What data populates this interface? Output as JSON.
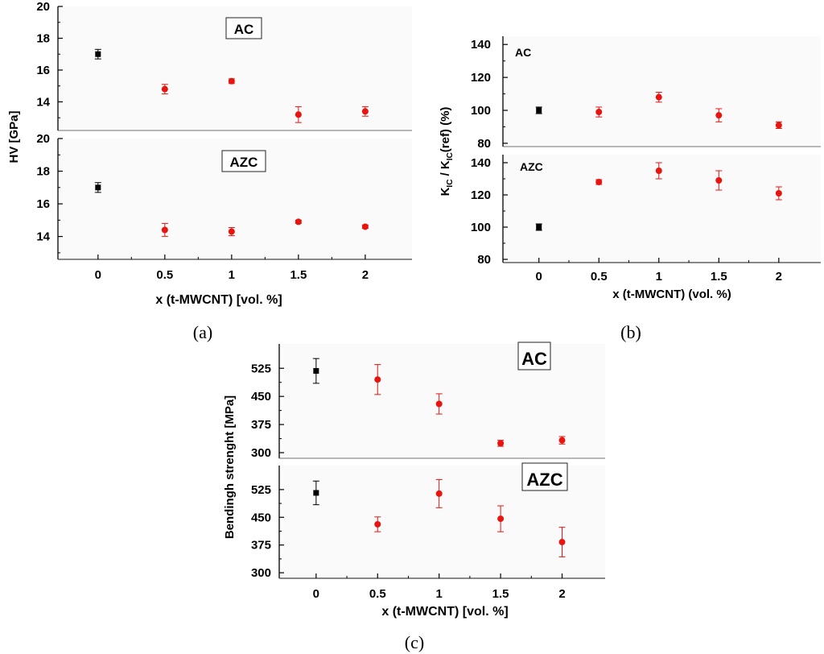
{
  "chart_data": [
    {
      "id": "a",
      "type": "scatter",
      "caption": "(a)",
      "xlabel": "x (t-MWCNT) [vol. %]",
      "ylabel": "HV [GPa]",
      "xticks": [
        "0",
        "0.5",
        "1",
        "1.5",
        "2"
      ],
      "xlim": [
        -0.3,
        2.35
      ],
      "panels": [
        {
          "label": "AC",
          "ylim": [
            12.2,
            20
          ],
          "yticks": [
            "14",
            "16",
            "18",
            "20"
          ],
          "points": [
            {
              "x": 0,
              "y": 17.0,
              "err": 0.3,
              "series": "ref"
            },
            {
              "x": 0.5,
              "y": 14.8,
              "err": 0.3,
              "series": "cnt"
            },
            {
              "x": 1,
              "y": 15.3,
              "err": 0.15,
              "series": "cnt"
            },
            {
              "x": 1.5,
              "y": 13.2,
              "err": 0.5,
              "series": "cnt"
            },
            {
              "x": 2,
              "y": 13.4,
              "err": 0.3,
              "series": "cnt"
            }
          ]
        },
        {
          "label": "AZC",
          "ylim": [
            12.6,
            20
          ],
          "yticks": [
            "14",
            "16",
            "18",
            "20"
          ],
          "points": [
            {
              "x": 0,
              "y": 17.0,
              "err": 0.3,
              "series": "ref"
            },
            {
              "x": 0.5,
              "y": 14.4,
              "err": 0.4,
              "series": "cnt"
            },
            {
              "x": 1,
              "y": 14.3,
              "err": 0.25,
              "series": "cnt"
            },
            {
              "x": 1.5,
              "y": 14.9,
              "err": 0.1,
              "series": "cnt"
            },
            {
              "x": 2,
              "y": 14.6,
              "err": 0.1,
              "series": "cnt"
            }
          ]
        }
      ]
    },
    {
      "id": "b",
      "type": "scatter",
      "caption": "(b)",
      "xlabel": "x (t-MWCNT) (vol. %)",
      "ylabel": "K",
      "ylabel_parts": [
        "K",
        "IC",
        " / K",
        "IC",
        "(ref) (%)"
      ],
      "xticks": [
        "0",
        "0.5",
        "1",
        "1.5",
        "2"
      ],
      "xlim": [
        -0.3,
        2.35
      ],
      "panels": [
        {
          "label": "AC",
          "ylim": [
            78,
            145
          ],
          "yticks": [
            "80",
            "100",
            "120",
            "140"
          ],
          "points": [
            {
              "x": 0,
              "y": 100,
              "err": 2,
              "series": "ref"
            },
            {
              "x": 0.5,
              "y": 99,
              "err": 3,
              "series": "cnt"
            },
            {
              "x": 1,
              "y": 108,
              "err": 3,
              "series": "cnt"
            },
            {
              "x": 1.5,
              "y": 97,
              "err": 4,
              "series": "cnt"
            },
            {
              "x": 2,
              "y": 91,
              "err": 2,
              "series": "cnt"
            }
          ]
        },
        {
          "label": "AZC",
          "ylim": [
            78,
            145
          ],
          "yticks": [
            "80",
            "100",
            "120",
            "140"
          ],
          "points": [
            {
              "x": 0,
              "y": 100,
              "err": 2,
              "series": "ref"
            },
            {
              "x": 0.5,
              "y": 128,
              "err": 1.5,
              "series": "cnt"
            },
            {
              "x": 1,
              "y": 135,
              "err": 5,
              "series": "cnt"
            },
            {
              "x": 1.5,
              "y": 129,
              "err": 6,
              "series": "cnt"
            },
            {
              "x": 2,
              "y": 121,
              "err": 4,
              "series": "cnt"
            }
          ]
        }
      ]
    },
    {
      "id": "c",
      "type": "scatter",
      "caption": "(c)",
      "xlabel": "x (t-MWCNT) [vol. %]",
      "ylabel": "Bendingh strenght [MPa]",
      "xticks": [
        "0",
        "0.5",
        "1",
        "1.5",
        "2"
      ],
      "xlim": [
        -0.3,
        2.35
      ],
      "panels": [
        {
          "label": "AC",
          "ylim": [
            285,
            590
          ],
          "yticks": [
            "300",
            "375",
            "450",
            "525"
          ],
          "points": [
            {
              "x": 0,
              "y": 518,
              "err": 33,
              "series": "ref"
            },
            {
              "x": 0.5,
              "y": 495,
              "err": 40,
              "series": "cnt"
            },
            {
              "x": 1,
              "y": 430,
              "err": 27,
              "series": "cnt"
            },
            {
              "x": 1.5,
              "y": 325,
              "err": 8,
              "series": "cnt"
            },
            {
              "x": 2,
              "y": 333,
              "err": 10,
              "series": "cnt"
            }
          ]
        },
        {
          "label": "AZC",
          "ylim": [
            285,
            590
          ],
          "yticks": [
            "300",
            "375",
            "450",
            "525"
          ],
          "points": [
            {
              "x": 0,
              "y": 516,
              "err": 32,
              "series": "ref"
            },
            {
              "x": 0.5,
              "y": 431,
              "err": 20,
              "series": "cnt"
            },
            {
              "x": 1,
              "y": 514,
              "err": 38,
              "series": "cnt"
            },
            {
              "x": 1.5,
              "y": 446,
              "err": 35,
              "series": "cnt"
            },
            {
              "x": 2,
              "y": 383,
              "err": 40,
              "series": "cnt"
            }
          ]
        }
      ]
    }
  ],
  "colors": {
    "ref": "#000000",
    "cnt": "#e8140f"
  }
}
